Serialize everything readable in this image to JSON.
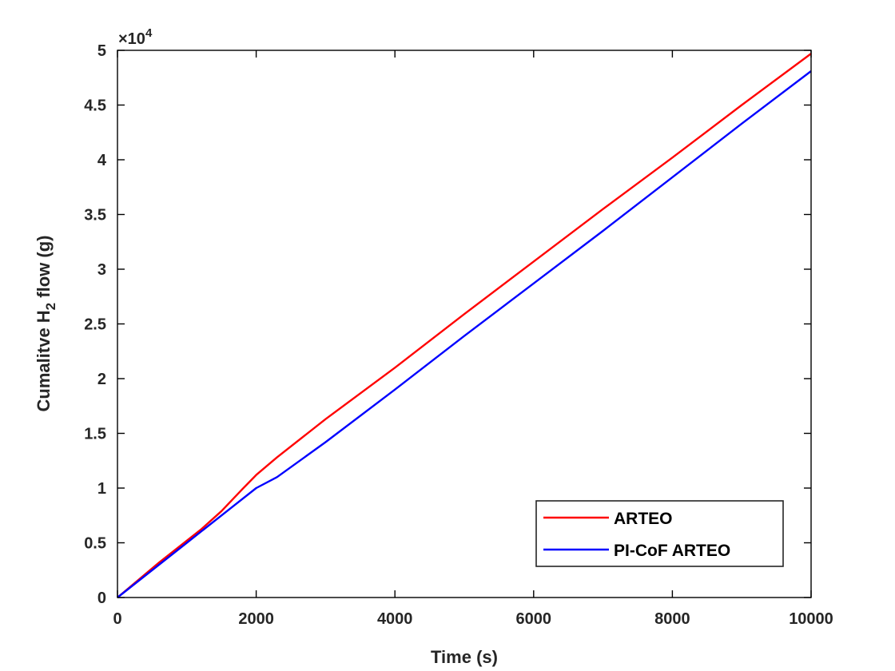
{
  "chart_data": {
    "type": "line",
    "title": "",
    "xlabel": "Time (s)",
    "ylabel": {
      "prefix": "Cumalitve H",
      "subscript": "2",
      "suffix": " flow (g)"
    },
    "y_multiplier": {
      "base": "×10",
      "exponent": "4"
    },
    "xlim": [
      0,
      10000
    ],
    "ylim": [
      0,
      50000
    ],
    "x_ticks": [
      0,
      2000,
      4000,
      6000,
      8000,
      10000
    ],
    "x_tick_labels": [
      "0",
      "2000",
      "4000",
      "6000",
      "8000",
      "10000"
    ],
    "y_ticks": [
      0,
      5000,
      10000,
      15000,
      20000,
      25000,
      30000,
      35000,
      40000,
      45000,
      50000
    ],
    "y_tick_labels": [
      "0",
      "0.5",
      "1",
      "1.5",
      "2",
      "2.5",
      "3",
      "3.5",
      "4",
      "4.5",
      "5"
    ],
    "grid": false,
    "legend_position": "bottom-right",
    "series": [
      {
        "name": "ARTEO",
        "color": "#ff0000",
        "x": [
          0,
          600,
          1200,
          1500,
          1800,
          2000,
          2300,
          3000,
          4000,
          5000,
          6000,
          7000,
          8000,
          9000,
          10000
        ],
        "y": [
          0,
          3200,
          6200,
          7900,
          9900,
          11200,
          12800,
          16300,
          21000,
          25900,
          30700,
          35500,
          40200,
          45000,
          49700
        ]
      },
      {
        "name": "PI-CoF ARTEO",
        "color": "#0000ff",
        "x": [
          0,
          1000,
          2000,
          2300,
          3000,
          4000,
          5000,
          6000,
          7000,
          8000,
          9000,
          10000
        ],
        "y": [
          0,
          5000,
          10000,
          11000,
          14200,
          19000,
          23900,
          28700,
          33500,
          38400,
          43300,
          48100
        ]
      }
    ]
  }
}
